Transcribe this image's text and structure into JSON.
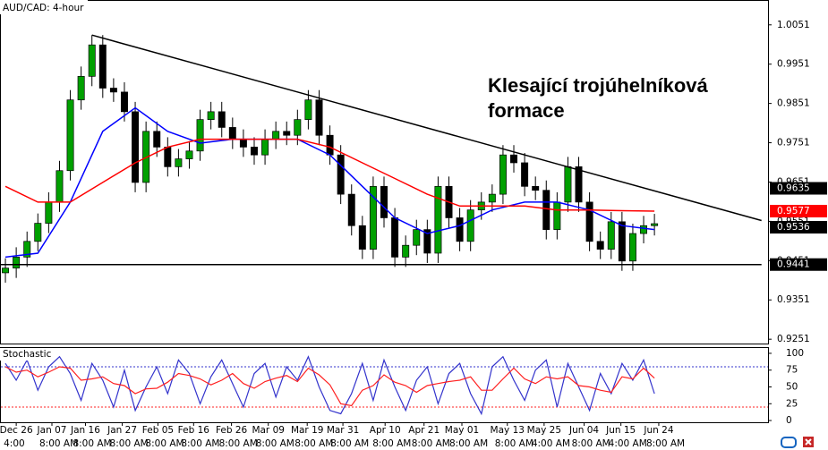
{
  "chart_data": [
    {
      "type": "candlestick",
      "title": "AUD/CAD: 4-hour",
      "annotation": "Klesající trojúhelníková formace",
      "x": [
        0,
        1,
        2,
        3,
        4,
        5,
        6,
        7,
        8,
        9,
        10,
        11,
        12,
        13,
        14,
        15,
        16,
        17,
        18,
        19,
        20,
        21,
        22,
        23,
        24,
        25,
        26,
        27,
        28,
        29,
        30,
        31,
        32,
        33,
        34,
        35,
        36,
        37,
        38,
        39,
        40,
        41,
        42,
        43,
        44,
        45,
        46,
        47,
        48,
        49,
        50,
        51,
        52,
        53,
        54,
        55,
        56,
        57,
        58,
        59,
        60
      ],
      "open": [
        0.942,
        0.9432,
        0.946,
        0.95,
        0.9546,
        0.96,
        0.968,
        0.986,
        0.992,
        1.0,
        0.989,
        0.988,
        0.983,
        0.965,
        0.978,
        0.974,
        0.969,
        0.971,
        0.973,
        0.981,
        0.983,
        0.979,
        0.976,
        0.974,
        0.972,
        0.976,
        0.978,
        0.977,
        0.981,
        0.986,
        0.977,
        0.972,
        0.962,
        0.954,
        0.948,
        0.964,
        0.956,
        0.946,
        0.949,
        0.953,
        0.947,
        0.964,
        0.956,
        0.95,
        0.958,
        0.96,
        0.962,
        0.972,
        0.97,
        0.964,
        0.963,
        0.953,
        0.96,
        0.969,
        0.96,
        0.95,
        0.948,
        0.955,
        0.945,
        0.952,
        0.954
      ],
      "high": [
        0.9457,
        0.9485,
        0.9525,
        0.9571,
        0.9625,
        0.9705,
        0.9885,
        0.9945,
        1.0025,
        1.0025,
        0.9915,
        0.9905,
        0.9855,
        0.9805,
        0.9805,
        0.9765,
        0.9735,
        0.9755,
        0.9835,
        0.9855,
        0.9855,
        0.9815,
        0.9785,
        0.9765,
        0.9785,
        0.9805,
        0.9805,
        0.9835,
        0.9885,
        0.9885,
        0.9795,
        0.9745,
        0.9645,
        0.9565,
        0.9665,
        0.9665,
        0.9585,
        0.9515,
        0.9555,
        0.9555,
        0.9665,
        0.9665,
        0.9585,
        0.9605,
        0.9625,
        0.9645,
        0.9745,
        0.9745,
        0.9725,
        0.9665,
        0.9655,
        0.9625,
        0.9715,
        0.9715,
        0.9625,
        0.9525,
        0.9575,
        0.9575,
        0.9545,
        0.9565,
        0.957
      ],
      "low": [
        0.9395,
        0.9407,
        0.9435,
        0.9475,
        0.9521,
        0.9575,
        0.9655,
        0.9835,
        0.9895,
        0.9865,
        0.9855,
        0.9805,
        0.9625,
        0.9625,
        0.9715,
        0.9665,
        0.9665,
        0.9685,
        0.9705,
        0.9785,
        0.9765,
        0.9735,
        0.9715,
        0.9695,
        0.9695,
        0.9735,
        0.9745,
        0.9745,
        0.9785,
        0.9745,
        0.9695,
        0.9595,
        0.9515,
        0.9455,
        0.9455,
        0.9535,
        0.9435,
        0.9435,
        0.9465,
        0.9445,
        0.9445,
        0.9535,
        0.9475,
        0.9475,
        0.9555,
        0.9575,
        0.9595,
        0.9675,
        0.9615,
        0.9605,
        0.9505,
        0.9505,
        0.9575,
        0.9575,
        0.9475,
        0.9455,
        0.9455,
        0.9425,
        0.9425,
        0.9495,
        0.9515
      ],
      "close": [
        0.9432,
        0.946,
        0.95,
        0.9546,
        0.96,
        0.968,
        0.986,
        0.992,
        1.0,
        0.989,
        0.988,
        0.983,
        0.965,
        0.978,
        0.974,
        0.969,
        0.971,
        0.973,
        0.981,
        0.983,
        0.979,
        0.976,
        0.974,
        0.972,
        0.976,
        0.978,
        0.977,
        0.981,
        0.986,
        0.977,
        0.972,
        0.962,
        0.954,
        0.948,
        0.964,
        0.956,
        0.946,
        0.949,
        0.953,
        0.947,
        0.964,
        0.956,
        0.95,
        0.958,
        0.96,
        0.962,
        0.972,
        0.97,
        0.964,
        0.963,
        0.953,
        0.96,
        0.969,
        0.96,
        0.95,
        0.948,
        0.955,
        0.945,
        0.952,
        0.954,
        0.9545
      ],
      "up_color": "#00a000",
      "down_color": "#000000",
      "xlim": [
        -0.5,
        70.5
      ],
      "xticks": [
        {
          "value": 1.0,
          "label": "Dec 26"
        },
        {
          "value": 4.3,
          "label": "Jan 07"
        },
        {
          "value": 7.4,
          "label": "Jan 16"
        },
        {
          "value": 10.8,
          "label": "Jan 27"
        },
        {
          "value": 14.1,
          "label": "Feb 05"
        },
        {
          "value": 17.4,
          "label": "Feb 16"
        },
        {
          "value": 20.9,
          "label": "Feb 26"
        },
        {
          "value": 24.3,
          "label": "Mar 09"
        },
        {
          "value": 27.9,
          "label": "Mar 19"
        },
        {
          "value": 31.2,
          "label": "Mar 31"
        },
        {
          "value": 35.1,
          "label": "Apr 10"
        },
        {
          "value": 38.7,
          "label": "Apr 21"
        },
        {
          "value": 42.2,
          "label": "May 01"
        },
        {
          "value": 46.4,
          "label": "May 13"
        },
        {
          "value": 49.8,
          "label": "May 25"
        },
        {
          "value": 53.5,
          "label": "Jun 04"
        },
        {
          "value": 56.9,
          "label": "Jun 15"
        },
        {
          "value": 60.4,
          "label": "Jun 24"
        }
      ],
      "time_labels": [
        "4:00",
        "8:00 AM",
        "8:00 AM",
        "8:00 AM",
        "8:00 AM",
        "8:00 AM",
        "8:00 AM",
        "8:00 AM",
        "8:00 AM",
        "8:00 AM",
        "8:00 AM",
        "8:00 AM",
        "8:00 AM",
        "8:00 AM",
        "4:00 AM",
        "8:00 AM",
        "4:00 AM",
        "8:00 AM"
      ],
      "ylim": [
        0.924,
        1.0112
      ],
      "yticks": [
        0.9251,
        0.9351,
        0.9451,
        0.9551,
        0.9651,
        0.9751,
        0.9851,
        0.9951,
        1.0051
      ],
      "moving_averages": [
        {
          "color": "#0000ff",
          "x": [
            0,
            3,
            6,
            9,
            12,
            15,
            18,
            21,
            24,
            27,
            30,
            33,
            36,
            39,
            42,
            45,
            48,
            51,
            54,
            57,
            60
          ],
          "values": [
            0.946,
            0.947,
            0.96,
            0.978,
            0.984,
            0.978,
            0.975,
            0.976,
            0.976,
            0.976,
            0.972,
            0.964,
            0.956,
            0.952,
            0.954,
            0.958,
            0.96,
            0.96,
            0.958,
            0.954,
            0.953
          ]
        },
        {
          "color": "#ff0000",
          "x": [
            0,
            3,
            6,
            9,
            12,
            15,
            18,
            21,
            24,
            27,
            30,
            33,
            36,
            39,
            42,
            45,
            48,
            51,
            54,
            57,
            60
          ],
          "values": [
            0.964,
            0.96,
            0.96,
            0.965,
            0.97,
            0.974,
            0.976,
            0.976,
            0.976,
            0.976,
            0.974,
            0.97,
            0.966,
            0.962,
            0.959,
            0.959,
            0.959,
            0.958,
            0.958,
            0.9578,
            0.9577
          ]
        }
      ],
      "trendlines": [
        {
          "color": "#000000",
          "x": [
            8,
            69.9
          ],
          "values": [
            1.0025,
            0.9553
          ]
        },
        {
          "color": "#000000",
          "x": [
            -0.5,
            69.9
          ],
          "values": [
            0.9441,
            0.9441
          ]
        }
      ],
      "price_tags": [
        {
          "value": 0.9635,
          "color": "#000000"
        },
        {
          "value": 0.9577,
          "color": "#ff0000"
        },
        {
          "value": 0.9536,
          "color": "#000000"
        },
        {
          "value": 0.9441,
          "color": "#000000"
        }
      ]
    },
    {
      "type": "line",
      "title": "Stochastic",
      "x": [
        0,
        1,
        2,
        3,
        4,
        5,
        6,
        7,
        8,
        9,
        10,
        11,
        12,
        13,
        14,
        15,
        16,
        17,
        18,
        19,
        20,
        21,
        22,
        23,
        24,
        25,
        26,
        27,
        28,
        29,
        30,
        31,
        32,
        33,
        34,
        35,
        36,
        37,
        38,
        39,
        40,
        41,
        42,
        43,
        44,
        45,
        46,
        47,
        48,
        49,
        50,
        51,
        52,
        53,
        54,
        55,
        56,
        57,
        58,
        59,
        60
      ],
      "series": [
        {
          "color": "#3333cc",
          "values": [
            85,
            60,
            90,
            45,
            80,
            95,
            70,
            30,
            85,
            60,
            20,
            75,
            15,
            50,
            80,
            40,
            90,
            70,
            25,
            65,
            90,
            55,
            20,
            70,
            85,
            35,
            80,
            60,
            95,
            50,
            15,
            10,
            40,
            85,
            30,
            90,
            50,
            15,
            60,
            80,
            25,
            70,
            85,
            40,
            10,
            80,
            95,
            60,
            30,
            75,
            90,
            20,
            85,
            50,
            15,
            70,
            40,
            85,
            60,
            90,
            40
          ]
        },
        {
          "color": "#ff2020",
          "values": [
            80,
            72,
            75,
            65,
            72,
            80,
            78,
            60,
            62,
            65,
            55,
            52,
            40,
            47,
            48,
            57,
            70,
            67,
            62,
            53,
            60,
            70,
            55,
            48,
            58,
            63,
            67,
            58,
            78,
            68,
            53,
            25,
            22,
            45,
            52,
            68,
            57,
            52,
            42,
            52,
            55,
            58,
            60,
            65,
            45,
            45,
            62,
            78,
            62,
            55,
            65,
            62,
            65,
            52,
            50,
            45,
            42,
            65,
            62,
            78,
            63
          ]
        }
      ],
      "xlim": [
        -0.5,
        70.5
      ],
      "ylim": [
        -2.6,
        107.9
      ],
      "yticks": [
        0,
        25,
        50,
        75,
        100
      ],
      "levels": [
        {
          "value": 80,
          "color": "#3333cc"
        },
        {
          "value": 20,
          "color": "#ff2020"
        }
      ]
    }
  ]
}
